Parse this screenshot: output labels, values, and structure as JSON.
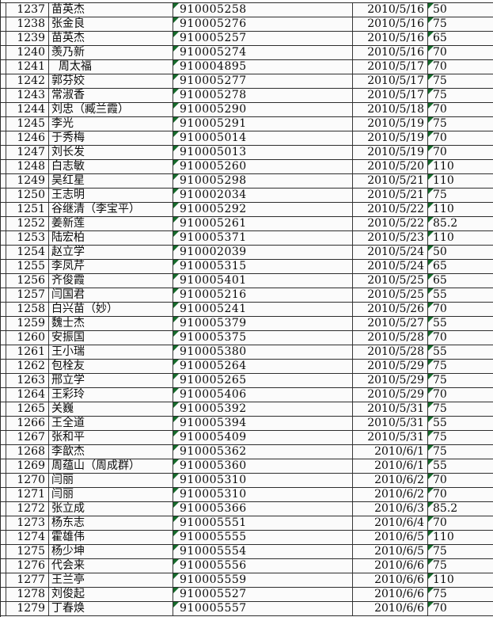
{
  "app": {
    "kind": "spreadsheet-screenshot",
    "visible_row_range": "1237-1279"
  },
  "colors": {
    "text_error_indicator_green": "#166a2b",
    "grid_line": "#2d2d2d",
    "cell_background": "#fbfbfb"
  },
  "icons": {
    "cell_corner_indicator": "number-stored-as-text-triangle"
  },
  "table": {
    "rows": [
      {
        "num": "1237",
        "name": "苗英杰",
        "id": "910005258",
        "date": "2010/5/16",
        "value": "50"
      },
      {
        "num": "1238",
        "name": "张金良",
        "id": "910005276",
        "date": "2010/5/16",
        "value": "75"
      },
      {
        "num": "1239",
        "name": "苗英杰",
        "id": "910005257",
        "date": "2010/5/16",
        "value": "65"
      },
      {
        "num": "1240",
        "name": "羡乃新",
        "id": "910005274",
        "date": "2010/5/16",
        "value": "70"
      },
      {
        "num": "1241",
        "name": "  周太福",
        "id": "910004895",
        "date": "2010/5/17",
        "value": "70"
      },
      {
        "num": "1242",
        "name": "郭芬姣",
        "id": "910005277",
        "date": "2010/5/17",
        "value": "75"
      },
      {
        "num": "1243",
        "name": "常淑香",
        "id": "910005278",
        "date": "2010/5/17",
        "value": "75"
      },
      {
        "num": "1244",
        "name": "刘忠（臧兰霞）",
        "id": "910005290",
        "date": "2010/5/18",
        "value": "70"
      },
      {
        "num": "1245",
        "name": "李光",
        "id": "910005291",
        "date": "2010/5/19",
        "value": "75"
      },
      {
        "num": "1246",
        "name": "于秀梅",
        "id": "910005014",
        "date": "2010/5/19",
        "value": "70"
      },
      {
        "num": "1247",
        "name": "刘长发",
        "id": "910005013",
        "date": "2010/5/19",
        "value": "70"
      },
      {
        "num": "1248",
        "name": "白志敏",
        "id": "910005260",
        "date": "2010/5/20",
        "value": "110"
      },
      {
        "num": "1249",
        "name": "吴红星",
        "id": "910005298",
        "date": "2010/5/21",
        "value": "110"
      },
      {
        "num": "1250",
        "name": "王志明",
        "id": "910002034",
        "date": "2010/5/21",
        "value": "75"
      },
      {
        "num": "1251",
        "name": "谷继清（李宝平）",
        "id": "910005292",
        "date": "2010/5/22",
        "value": "110"
      },
      {
        "num": "1252",
        "name": "姜新莲",
        "id": "910005261",
        "date": "2010/5/22",
        "value": "85.2"
      },
      {
        "num": "1253",
        "name": "陆宏柏",
        "id": "910005371",
        "date": "2010/5/23",
        "value": "110"
      },
      {
        "num": "1254",
        "name": "赵立学",
        "id": "910002039",
        "date": "2010/5/24",
        "value": "50"
      },
      {
        "num": "1255",
        "name": "李凤芹",
        "id": "910005315",
        "date": "2010/5/24",
        "value": "65"
      },
      {
        "num": "1256",
        "name": "齐俊霞",
        "id": "910005401",
        "date": "2010/5/25",
        "value": "65"
      },
      {
        "num": "1257",
        "name": "闫国君",
        "id": "910005216",
        "date": "2010/5/25",
        "value": "55"
      },
      {
        "num": "1258",
        "name": "白兴苗（妙）",
        "id": "910005241",
        "date": "2010/5/26",
        "value": "70"
      },
      {
        "num": "1259",
        "name": "魏士杰",
        "id": "910005379",
        "date": "2010/5/27",
        "value": "55"
      },
      {
        "num": "1260",
        "name": "安振国",
        "id": "910005375",
        "date": "2010/5/28",
        "value": "70"
      },
      {
        "num": "1261",
        "name": "王小瑞",
        "id": "910005380",
        "date": "2010/5/28",
        "value": "55"
      },
      {
        "num": "1262",
        "name": "包栓友",
        "id": "910005264",
        "date": "2010/5/29",
        "value": "75"
      },
      {
        "num": "1263",
        "name": "邢立学",
        "id": "910005265",
        "date": "2010/5/29",
        "value": "75"
      },
      {
        "num": "1264",
        "name": "王彩玲",
        "id": "910005406",
        "date": "2010/5/29",
        "value": "70"
      },
      {
        "num": "1265",
        "name": "关巍",
        "id": "910005392",
        "date": "2010/5/31",
        "value": "75"
      },
      {
        "num": "1266",
        "name": "王全道",
        "id": "910005394",
        "date": "2010/5/31",
        "value": "55"
      },
      {
        "num": "1267",
        "name": "张和平",
        "id": "910005409",
        "date": "2010/5/31",
        "value": "75"
      },
      {
        "num": "1268",
        "name": "李歆杰",
        "id": "910005362",
        "date": "2010/6/1",
        "value": "75"
      },
      {
        "num": "1269",
        "name": "周蕴山（周成群）",
        "id": "910005360",
        "date": "2010/6/1",
        "value": "55"
      },
      {
        "num": "1270",
        "name": "闫丽",
        "id": "910005310",
        "date": "2010/6/2",
        "value": "70"
      },
      {
        "num": "1271",
        "name": "闫丽",
        "id": "910005310",
        "date": "2010/6/2",
        "value": "70"
      },
      {
        "num": "1272",
        "name": "张立成",
        "id": "910005366",
        "date": "2010/6/3",
        "value": "85.2"
      },
      {
        "num": "1273",
        "name": "杨东志",
        "id": "910005551",
        "date": "2010/6/4",
        "value": "70"
      },
      {
        "num": "1274",
        "name": "霍雄伟",
        "id": "910005555",
        "date": "2010/6/5",
        "value": "110"
      },
      {
        "num": "1275",
        "name": "杨少坤",
        "id": "910005554",
        "date": "2010/6/5",
        "value": "75"
      },
      {
        "num": "1276",
        "name": "代会来",
        "id": "910005556",
        "date": "2010/6/6",
        "value": "75"
      },
      {
        "num": "1277",
        "name": "王兰亭",
        "id": "910005559",
        "date": "2010/6/6",
        "value": "110"
      },
      {
        "num": "1278",
        "name": "刘俊起",
        "id": "910005527",
        "date": "2010/6/6",
        "value": "75"
      },
      {
        "num": "1279",
        "name": "丁春焕",
        "id": "910005557",
        "date": "2010/6/6",
        "value": "70"
      }
    ]
  }
}
